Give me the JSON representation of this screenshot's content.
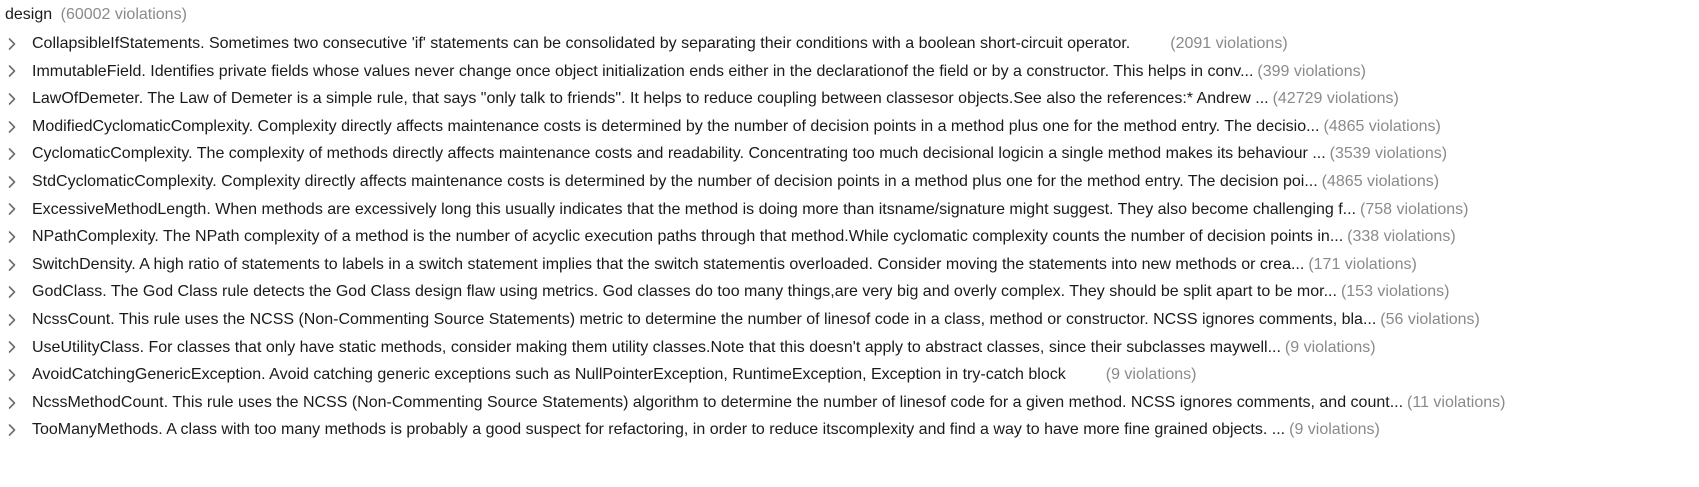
{
  "root": {
    "name": "design",
    "count": "(60002 violations)"
  },
  "icons": {
    "expand": "chevron-right-icon",
    "color": "#6e6e6e"
  },
  "items": [
    {
      "text": "CollapsibleIfStatements. Sometimes two consecutive 'if' statements can be consolidated by separating their conditions with a boolean short-circuit operator.",
      "count": "(2091 violations)",
      "gap": 40
    },
    {
      "text": "ImmutableField. Identifies private fields whose values never change once object initialization ends either in the declarationof the field or by a constructor.  This helps in conv...",
      "count": "(399 violations)",
      "gap": 4
    },
    {
      "text": "LawOfDemeter. The Law of Demeter is a simple rule, that says \"only talk to friends\". It helps to reduce coupling between classesor objects.See also the references:*   Andrew ...",
      "count": "(42729 violations)",
      "gap": 4
    },
    {
      "text": "ModifiedCyclomaticComplexity. Complexity directly affects maintenance costs is determined by the number of decision points in a method plus one for the method entry.  The decisio...",
      "count": "(4865 violations)",
      "gap": 4
    },
    {
      "text": "CyclomaticComplexity. The complexity of methods directly affects maintenance costs and readability. Concentrating too much decisional logicin a single method makes its behaviour ...",
      "count": "(3539 violations)",
      "gap": 4
    },
    {
      "text": "StdCyclomaticComplexity. Complexity directly affects maintenance costs is determined by the number of decision points in a method plus one for the method entry.  The decision poi...",
      "count": "(4865 violations)",
      "gap": 4
    },
    {
      "text": "ExcessiveMethodLength. When methods are excessively long this usually indicates that the method is doing more than itsname/signature might suggest. They also become challenging f...",
      "count": "(758 violations)",
      "gap": 4
    },
    {
      "text": "NPathComplexity. The NPath complexity of a method is the number of acyclic execution paths through that method.While cyclomatic complexity counts the number of decision points in...",
      "count": "(338 violations)",
      "gap": 4
    },
    {
      "text": "SwitchDensity. A high ratio of statements to labels in a switch statement implies that the switch statementis overloaded.  Consider moving the statements into new methods or crea...",
      "count": "(171 violations)",
      "gap": 4
    },
    {
      "text": "GodClass. The God Class rule detects the God Class design flaw using metrics. God classes do too many things,are very big and overly complex. They should be split apart to be mor...",
      "count": "(153 violations)",
      "gap": 4
    },
    {
      "text": "NcssCount. This rule uses the NCSS (Non-Commenting Source Statements) metric to determine the number of linesof code in a class, method or constructor. NCSS ignores comments, bla...",
      "count": "(56 violations)",
      "gap": 4
    },
    {
      "text": "UseUtilityClass. For classes that only have static methods, consider making them utility classes.Note that this doesn't apply to abstract classes, since their subclasses maywell...",
      "count": "(9 violations)",
      "gap": 4
    },
    {
      "text": "AvoidCatchingGenericException. Avoid catching generic exceptions such as NullPointerException, RuntimeException, Exception in try-catch block",
      "count": "(9 violations)",
      "gap": 40
    },
    {
      "text": "NcssMethodCount. This rule uses the NCSS (Non-Commenting Source Statements) algorithm to determine the number of linesof code for a given method. NCSS ignores comments, and count...",
      "count": "(11 violations)",
      "gap": 4
    },
    {
      "text": "TooManyMethods. A class with too many methods is probably a good suspect for refactoring, in order to reduce itscomplexity and find a way to have more fine grained objects.     ...",
      "count": "(9 violations)",
      "gap": 4
    }
  ]
}
